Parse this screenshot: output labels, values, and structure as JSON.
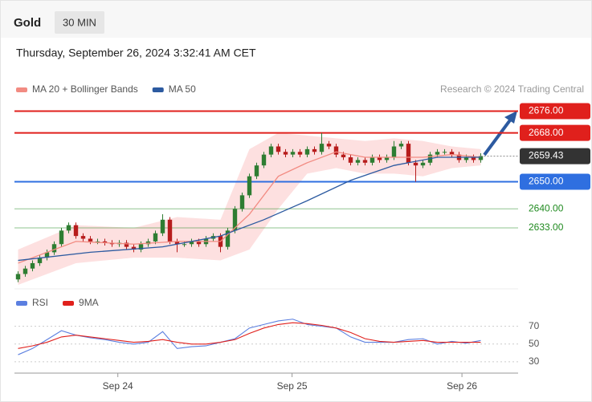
{
  "header": {
    "symbol": "Gold",
    "interval": "30 MIN",
    "datetime": "Thursday, September 26, 2024 3:32:41 AM CET"
  },
  "chart_data": [
    {
      "type": "candlestick",
      "source": "Research © 2024 Trading Central",
      "xlim": [
        0,
        65
      ],
      "ylim": [
        2612,
        2680
      ],
      "up_color": "#2e7d32",
      "down_color": "#b71c1c",
      "open": [
        2614,
        2616,
        2618,
        2620,
        2622,
        2624,
        2627,
        2632,
        2634,
        2630,
        2629,
        2628,
        2628,
        2627.5,
        2627,
        2627.5,
        2626,
        2625,
        2627,
        2628,
        2631,
        2636,
        2628,
        2627,
        2627,
        2628,
        2627,
        2629,
        2630,
        2626,
        2632,
        2640,
        2645,
        2652,
        2656,
        2660,
        2663,
        2661,
        2660,
        2661,
        2660,
        2662,
        2661,
        2664,
        2663,
        2660,
        2659,
        2657,
        2658,
        2657,
        2659,
        2658,
        2659,
        2663,
        2664,
        2657,
        2656,
        2657,
        2660,
        2661,
        2661,
        2660,
        2658,
        2659,
        2658
      ],
      "high": [
        2617,
        2619,
        2621,
        2623,
        2625,
        2628,
        2633,
        2635,
        2635,
        2631,
        2630,
        2629,
        2629,
        2628.5,
        2628.5,
        2628.5,
        2627,
        2628,
        2629,
        2632,
        2638,
        2637,
        2629,
        2628,
        2629,
        2629,
        2630,
        2631,
        2631,
        2633,
        2641,
        2646,
        2653,
        2657,
        2661,
        2664,
        2664,
        2662,
        2662,
        2662,
        2663,
        2663,
        2668,
        2665,
        2664,
        2661,
        2660,
        2659,
        2659,
        2660,
        2660,
        2660,
        2665,
        2665,
        2665,
        2658,
        2658,
        2661,
        2662,
        2662,
        2662,
        2661,
        2660,
        2660,
        2660.5
      ],
      "low": [
        2613,
        2615,
        2617,
        2619,
        2621,
        2623,
        2626,
        2631,
        2629,
        2628,
        2627,
        2627,
        2626.5,
        2626,
        2626,
        2625,
        2624,
        2624,
        2626,
        2627,
        2630,
        2627,
        2624,
        2626,
        2626,
        2626,
        2626,
        2628,
        2624,
        2625,
        2631,
        2639,
        2644,
        2651,
        2655,
        2659,
        2660,
        2659,
        2659,
        2659,
        2659,
        2660,
        2660,
        2662,
        2659,
        2658,
        2656,
        2656,
        2656,
        2656,
        2657,
        2657,
        2658,
        2662,
        2656,
        2650,
        2655,
        2656,
        2659,
        2660,
        2659,
        2657,
        2657,
        2657,
        2657
      ],
      "close": [
        2616,
        2618,
        2620,
        2622,
        2624,
        2627,
        2632,
        2634,
        2630,
        2629,
        2628,
        2628,
        2627.5,
        2627,
        2627.5,
        2626,
        2625,
        2627,
        2628,
        2631,
        2636,
        2628,
        2627,
        2627,
        2628,
        2627,
        2629,
        2630,
        2626,
        2632,
        2640,
        2645,
        2652,
        2656,
        2660,
        2663,
        2661,
        2660,
        2661,
        2660,
        2662,
        2661,
        2664,
        2663,
        2660,
        2659,
        2657,
        2658,
        2657,
        2659,
        2658,
        2659,
        2663,
        2664,
        2657,
        2656,
        2657,
        2660,
        2661,
        2661,
        2660,
        2658,
        2659,
        2658,
        2659.43
      ],
      "bands": {
        "color": "#fde0e0",
        "x": [
          0,
          8,
          16,
          22,
          28,
          32,
          36,
          40,
          44,
          48,
          52,
          56,
          60,
          64
        ],
        "upper": [
          2625,
          2634,
          2633,
          2637,
          2636,
          2662,
          2668,
          2667,
          2666,
          2665,
          2666,
          2665,
          2663,
          2662
        ],
        "lower": [
          2612,
          2620,
          2622,
          2622,
          2621,
          2625,
          2640,
          2653,
          2655,
          2653,
          2653,
          2652,
          2655,
          2656
        ]
      },
      "series": [
        {
          "name": "MA 20 + Bollinger Bands",
          "color": "#f28b82",
          "x": [
            0,
            8,
            16,
            22,
            28,
            32,
            36,
            40,
            44,
            48,
            52,
            56,
            60,
            64
          ],
          "values": [
            2620,
            2628,
            2627,
            2628,
            2628,
            2638,
            2652,
            2657,
            2661,
            2659,
            2659,
            2659,
            2660,
            2659
          ]
        },
        {
          "name": "MA 50",
          "color": "#2c5aa0",
          "x": [
            0,
            10,
            20,
            28,
            34,
            40,
            46,
            52,
            58,
            64
          ],
          "values": [
            2621,
            2624,
            2626,
            2630,
            2636,
            2643,
            2650.5,
            2656,
            2659,
            2659
          ]
        }
      ],
      "levels": [
        {
          "value": 2676,
          "label": "2676.00",
          "color": "#e0201c",
          "boxed": true
        },
        {
          "value": 2668,
          "label": "2668.00",
          "color": "#e0201c",
          "boxed": true
        },
        {
          "value": 2650,
          "label": "2650.00",
          "color": "#2f6fe0",
          "boxed": true
        },
        {
          "value": 2640,
          "label": "2640.00",
          "color": "#1f8a1f",
          "boxed": false
        },
        {
          "value": 2633,
          "label": "2633.00",
          "color": "#1f8a1f",
          "boxed": false
        }
      ],
      "last": 2659.43,
      "last_color": "#333333"
    },
    {
      "type": "line",
      "xlim": [
        0,
        65
      ],
      "ylim": [
        20,
        85
      ],
      "yticks": [
        70,
        50,
        30
      ],
      "xticks": [
        {
          "value": 14.3,
          "label": "Sep 24"
        },
        {
          "value": 38.4,
          "label": "Sep 25"
        },
        {
          "value": 61.9,
          "label": "Sep 26"
        }
      ],
      "x": [
        0,
        2,
        4,
        6,
        8,
        10,
        12,
        14,
        16,
        18,
        20,
        22,
        24,
        26,
        28,
        30,
        32,
        34,
        36,
        38,
        40,
        42,
        44,
        46,
        48,
        50,
        52,
        54,
        56,
        58,
        60,
        62,
        64
      ],
      "series": [
        {
          "name": "RSI",
          "color": "#5b7fe0",
          "values": [
            38,
            45,
            55,
            65,
            60,
            57,
            55,
            52,
            50,
            52,
            64,
            45,
            47,
            48,
            52,
            56,
            68,
            72,
            76,
            78,
            72,
            70,
            68,
            58,
            52,
            52,
            52,
            55,
            56,
            50,
            53,
            51,
            54
          ]
        },
        {
          "name": "9MA",
          "color": "#e0201c",
          "values": [
            45,
            48,
            52,
            58,
            60,
            58,
            56,
            54,
            52,
            53,
            55,
            52,
            50,
            50,
            52,
            55,
            62,
            68,
            72,
            74,
            73,
            71,
            68,
            63,
            56,
            53,
            52,
            53,
            54,
            52,
            52,
            52,
            52
          ]
        }
      ]
    }
  ]
}
